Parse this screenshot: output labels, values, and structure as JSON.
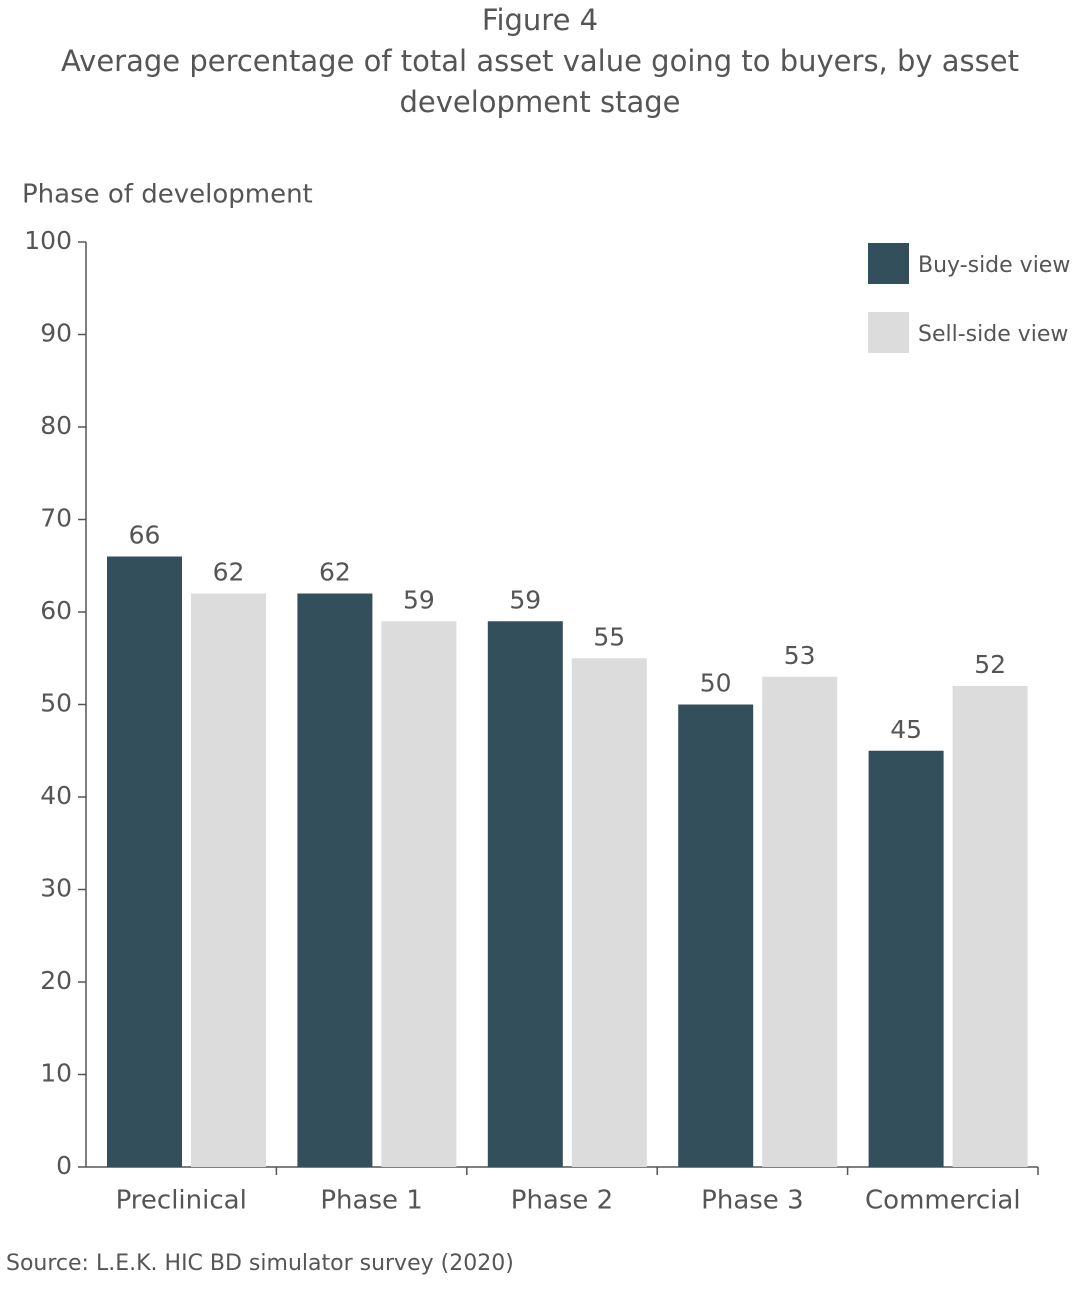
{
  "chart_data": {
    "type": "bar",
    "subtitle": "Figure 4",
    "title": "Average percentage of total asset value going to buyers, by asset development stage",
    "y_label": "Phase of development",
    "source": "Source: L.E.K. HIC BD simulator survey (2020)",
    "categories": [
      "Preclinical",
      "Phase 1",
      "Phase 2",
      "Phase 3",
      "Commercial"
    ],
    "series": [
      {
        "name": "Buy-side view",
        "color": "#344f5c",
        "values": [
          66,
          62,
          59,
          50,
          45
        ]
      },
      {
        "name": "Sell-side view",
        "color": "#dcdcdc",
        "values": [
          62,
          59,
          55,
          53,
          52
        ]
      }
    ],
    "ylim": [
      0,
      100
    ],
    "yticks": [
      0,
      10,
      20,
      30,
      40,
      50,
      60,
      70,
      80,
      90,
      100
    ],
    "grid": false,
    "legend": "top-right"
  }
}
